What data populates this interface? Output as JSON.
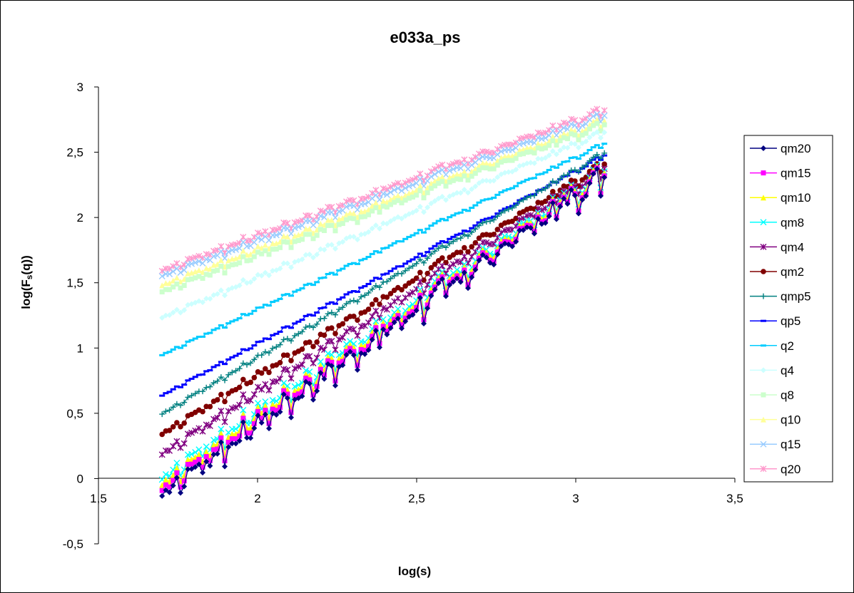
{
  "chart_data": {
    "type": "line",
    "title": "e033a_ps",
    "xlabel": "log(s)",
    "ylabel_main": "log(F",
    "ylabel_sub": "s",
    "ylabel_end": "(q))",
    "xlim": [
      1.5,
      3.5
    ],
    "ylim": [
      -0.5,
      3
    ],
    "x_ticks": [
      {
        "value": 1.5,
        "label": "1,5"
      },
      {
        "value": 2,
        "label": "2"
      },
      {
        "value": 2.5,
        "label": "2,5"
      },
      {
        "value": 3,
        "label": "3"
      },
      {
        "value": 3.5,
        "label": "3,5"
      }
    ],
    "y_ticks": [
      {
        "value": -0.5,
        "label": "-0,5"
      },
      {
        "value": 0,
        "label": "0"
      },
      {
        "value": 0.5,
        "label": "0,5"
      },
      {
        "value": 1,
        "label": "1"
      },
      {
        "value": 1.5,
        "label": "1,5"
      },
      {
        "value": 2,
        "label": "2"
      },
      {
        "value": 2.5,
        "label": "2,5"
      },
      {
        "value": 3,
        "label": "3"
      }
    ],
    "grid": false,
    "legend_position": "right",
    "x_range": [
      1.7,
      3.09
    ],
    "n_points": 121,
    "series": [
      {
        "name": "qm20",
        "color": "#000080",
        "marker": "diamond",
        "start": -0.1,
        "end": 2.34,
        "amp": 0.2
      },
      {
        "name": "qm15",
        "color": "#ff00ff",
        "marker": "square",
        "start": -0.06,
        "end": 2.35,
        "amp": 0.19
      },
      {
        "name": "qm10",
        "color": "#ffff00",
        "marker": "triangle",
        "start": -0.02,
        "end": 2.37,
        "amp": 0.18
      },
      {
        "name": "qm8",
        "color": "#00ffff",
        "marker": "x",
        "start": 0.02,
        "end": 2.38,
        "amp": 0.17
      },
      {
        "name": "qm4",
        "color": "#800080",
        "marker": "star",
        "start": 0.2,
        "end": 2.39,
        "amp": 0.1
      },
      {
        "name": "qm2",
        "color": "#800000",
        "marker": "circle",
        "start": 0.35,
        "end": 2.42,
        "amp": 0.07
      },
      {
        "name": "qmp5",
        "color": "#008080",
        "marker": "plus",
        "start": 0.5,
        "end": 2.5,
        "amp": 0.04
      },
      {
        "name": "qp5",
        "color": "#0000ff",
        "marker": "dash",
        "start": 0.64,
        "end": 2.48,
        "amp": 0.03
      },
      {
        "name": "q2",
        "color": "#00ccff",
        "marker": "dash",
        "start": 0.95,
        "end": 2.57,
        "amp": 0.03
      },
      {
        "name": "q4",
        "color": "#ccffff",
        "marker": "diamond",
        "start": 1.24,
        "end": 2.66,
        "amp": 0.05
      },
      {
        "name": "q8",
        "color": "#ccffcc",
        "marker": "square",
        "start": 1.44,
        "end": 2.72,
        "amp": 0.06
      },
      {
        "name": "q10",
        "color": "#ffff99",
        "marker": "triangle",
        "start": 1.49,
        "end": 2.75,
        "amp": 0.06
      },
      {
        "name": "q15",
        "color": "#99ccff",
        "marker": "x",
        "start": 1.56,
        "end": 2.79,
        "amp": 0.06
      },
      {
        "name": "q20",
        "color": "#ff99cc",
        "marker": "star",
        "start": 1.6,
        "end": 2.83,
        "amp": 0.06
      }
    ]
  }
}
